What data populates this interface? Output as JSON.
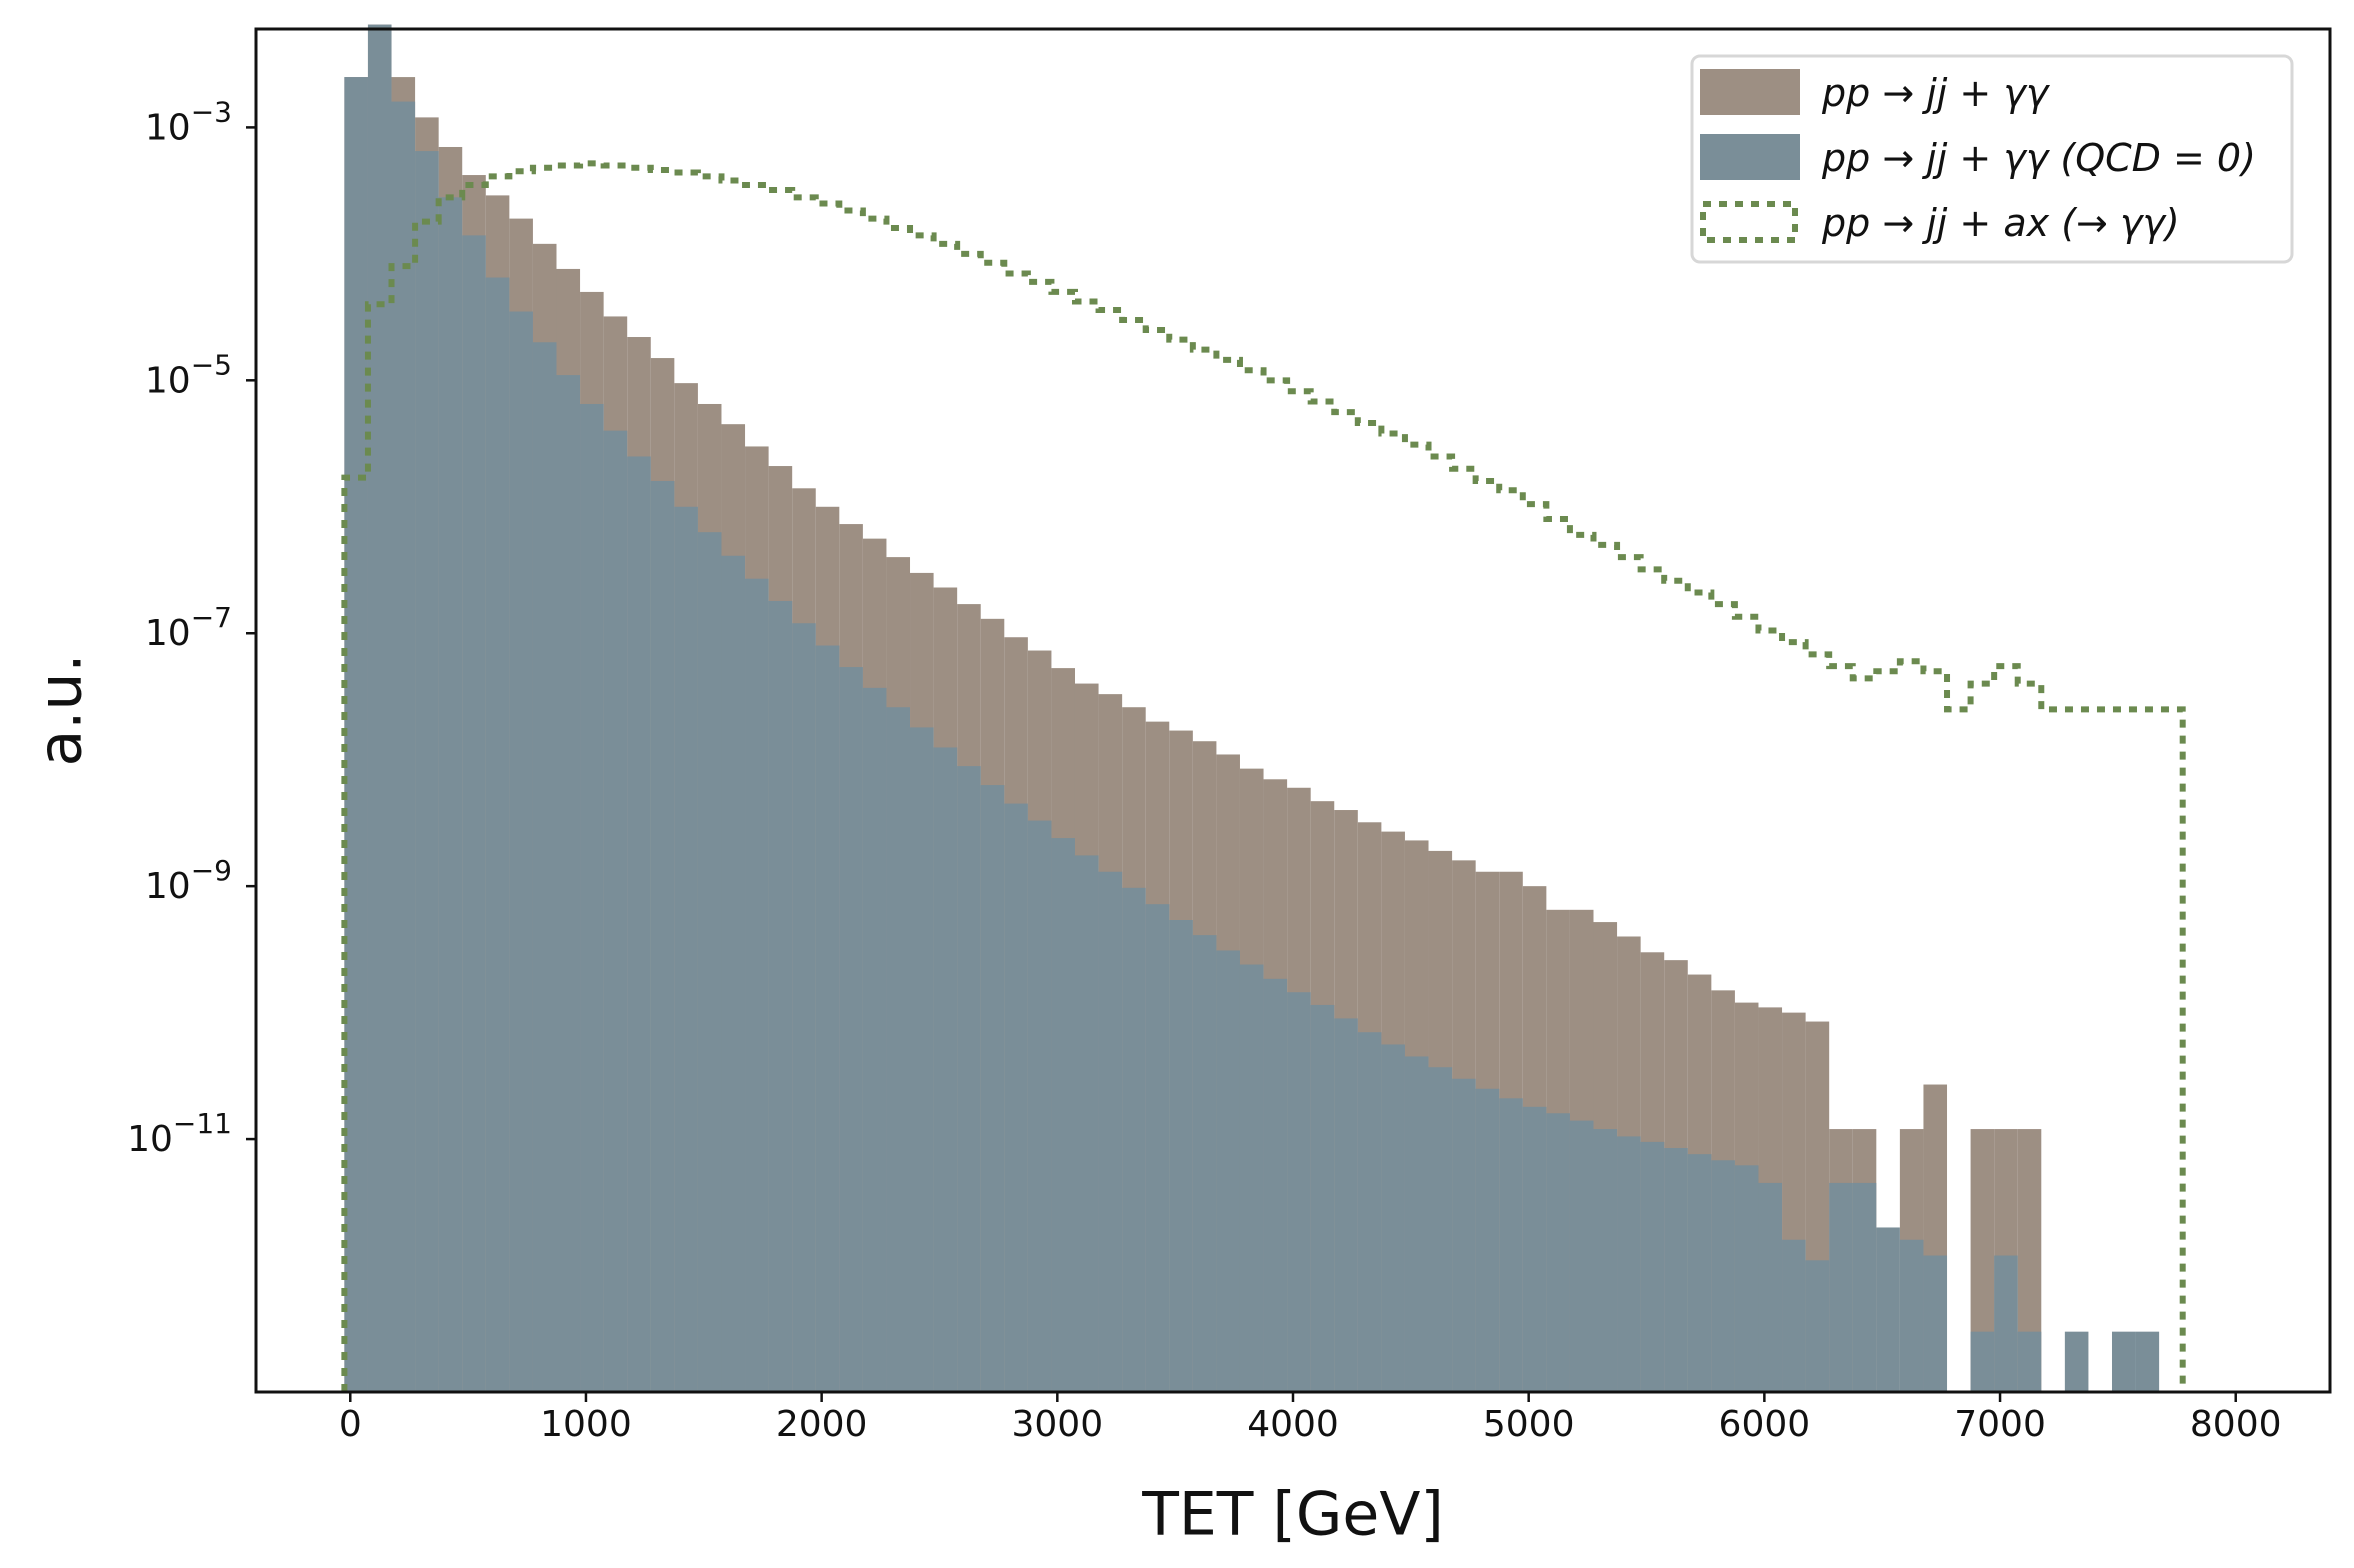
{
  "chart_data": {
    "type": "bar",
    "title": "",
    "xlabel": "TET [GeV]",
    "ylabel": "a.u.",
    "xlim": [
      -400,
      8400
    ],
    "ylim": [
      1e-13,
      0.006
    ],
    "y_scale": "log",
    "grid": false,
    "legend_placement": "top-right",
    "x_ticks": [
      0,
      1000,
      2000,
      3000,
      4000,
      5000,
      6000,
      7000,
      8000
    ],
    "x_tick_labels": [
      "0",
      "1000",
      "2000",
      "3000",
      "4000",
      "5000",
      "6000",
      "7000",
      "8000"
    ],
    "y_ticks": [
      1e-11,
      1e-09,
      1e-07,
      1e-05,
      0.001
    ],
    "y_tick_labels": [
      "10−11",
      "10−9",
      "10−7",
      "10−5",
      "10−3"
    ],
    "series": [
      {
        "name": "pp → jj + γγ",
        "kind": "histogram",
        "color": "#9d8f83",
        "bin_width": 100,
        "x_bin_starts": [
          -25,
          75,
          175,
          275,
          375,
          475,
          575,
          675,
          775,
          875,
          975,
          1075,
          1175,
          1275,
          1375,
          1475,
          1575,
          1675,
          1775,
          1875,
          1975,
          2075,
          2175,
          2275,
          2375,
          2475,
          2575,
          2675,
          2775,
          2875,
          2975,
          3075,
          3175,
          3275,
          3375,
          3475,
          3575,
          3675,
          3775,
          3875,
          3975,
          4075,
          4175,
          4275,
          4375,
          4475,
          4575,
          4675,
          4775,
          4875,
          4975,
          5075,
          5175,
          5275,
          5375,
          5475,
          5575,
          5675,
          5775,
          5875,
          5975,
          6075,
          6175,
          6275,
          6375,
          6475,
          6575,
          6675,
          6775,
          6875,
          6975,
          7075,
          7175,
          7275,
          7375,
          7475,
          7575,
          7675
        ],
        "values": [
          0.0025,
          0.0065,
          0.0025,
          0.0012,
          0.0007,
          0.00042,
          0.00029,
          0.00019,
          0.00012,
          7.6e-05,
          5e-05,
          3.2e-05,
          2.2e-05,
          1.5e-05,
          9.5e-06,
          6.5e-06,
          4.5e-06,
          3e-06,
          2.1e-06,
          1.4e-06,
          1e-06,
          7.3e-07,
          5.6e-07,
          4e-07,
          3e-07,
          2.3e-07,
          1.7e-07,
          1.3e-07,
          9.3e-08,
          7.3e-08,
          5.3e-08,
          4e-08,
          3.3e-08,
          2.6e-08,
          2e-08,
          1.7e-08,
          1.4e-08,
          1.1e-08,
          8.5e-09,
          7e-09,
          6e-09,
          4.7e-09,
          4e-09,
          3.2e-09,
          2.7e-09,
          2.3e-09,
          1.9e-09,
          1.6e-09,
          1.3e-09,
          1.3e-09,
          1e-09,
          6.5e-10,
          6.5e-10,
          5.2e-10,
          4e-10,
          3e-10,
          2.6e-10,
          2e-10,
          1.5e-10,
          1.2e-10,
          1.1e-10,
          1e-10,
          8.5e-11,
          1.2e-11,
          1.2e-11,
          0,
          1.2e-11,
          2.7e-11,
          0,
          1.2e-11,
          1.2e-11,
          1.2e-11,
          0,
          0,
          0,
          0,
          0,
          0
        ]
      },
      {
        "name": "pp → jj + γγ (QCD = 0)",
        "kind": "histogram",
        "color": "#7a8e98",
        "bin_width": 100,
        "x_bin_starts": [
          -25,
          75,
          175,
          275,
          375,
          475,
          575,
          675,
          775,
          875,
          975,
          1075,
          1175,
          1275,
          1375,
          1475,
          1575,
          1675,
          1775,
          1875,
          1975,
          2075,
          2175,
          2275,
          2375,
          2475,
          2575,
          2675,
          2775,
          2875,
          2975,
          3075,
          3175,
          3275,
          3375,
          3475,
          3575,
          3675,
          3775,
          3875,
          3975,
          4075,
          4175,
          4275,
          4375,
          4475,
          4575,
          4675,
          4775,
          4875,
          4975,
          5075,
          5175,
          5275,
          5375,
          5475,
          5575,
          5675,
          5775,
          5875,
          5975,
          6075,
          6175,
          6275,
          6375,
          6475,
          6575,
          6675,
          6775,
          6875,
          6975,
          7075,
          7175,
          7275,
          7375,
          7475,
          7575,
          7675
        ],
        "values": [
          0.0025,
          0.0065,
          0.0016,
          0.00065,
          0.00028,
          0.00014,
          6.5e-05,
          3.5e-05,
          2e-05,
          1.1e-05,
          6.5e-06,
          4e-06,
          2.5e-06,
          1.6e-06,
          1e-06,
          6.3e-07,
          4.1e-07,
          2.7e-07,
          1.8e-07,
          1.2e-07,
          8e-08,
          5.4e-08,
          3.7e-08,
          2.6e-08,
          1.8e-08,
          1.25e-08,
          8.9e-09,
          6.3e-09,
          4.5e-09,
          3.3e-09,
          2.4e-09,
          1.75e-09,
          1.3e-09,
          9.7e-10,
          7.2e-10,
          5.4e-10,
          4.1e-10,
          3.1e-10,
          2.4e-10,
          1.85e-10,
          1.45e-10,
          1.15e-10,
          9e-11,
          7e-11,
          5.6e-11,
          4.5e-11,
          3.7e-11,
          3e-11,
          2.5e-11,
          2.1e-11,
          1.8e-11,
          1.6e-11,
          1.4e-11,
          1.2e-11,
          1.05e-11,
          9.5e-12,
          8.5e-12,
          7.6e-12,
          6.8e-12,
          6.2e-12,
          4.5e-12,
          1.6e-12,
          1.1e-12,
          4.5e-12,
          4.5e-12,
          2e-12,
          1.6e-12,
          1.2e-12,
          1e-13,
          3e-13,
          1.2e-12,
          3e-13,
          0,
          3e-13,
          0,
          3e-13,
          3e-13,
          0
        ]
      },
      {
        "name": "pp → jj + ax (→ γγ)",
        "kind": "step",
        "color": "#6b8a4f",
        "dash": "8,8",
        "points": [
          [
            -25,
            1e-13
          ],
          [
            -25,
            1.7e-06
          ],
          [
            75,
            1.7e-06
          ],
          [
            75,
            4e-05
          ],
          [
            175,
            4e-05
          ],
          [
            175,
            8e-05
          ],
          [
            275,
            8e-05
          ],
          [
            275,
            0.00018
          ],
          [
            375,
            0.00018
          ],
          [
            375,
            0.00028
          ],
          [
            475,
            0.00028
          ],
          [
            475,
            0.00035
          ],
          [
            575,
            0.00035
          ],
          [
            575,
            0.00041
          ],
          [
            675,
            0.00041
          ],
          [
            675,
            0.00045
          ],
          [
            775,
            0.00045
          ],
          [
            775,
            0.00048
          ],
          [
            875,
            0.00048
          ],
          [
            875,
            0.0005
          ],
          [
            975,
            0.0005
          ],
          [
            975,
            0.00052
          ],
          [
            1075,
            0.00052
          ],
          [
            1075,
            0.0005
          ],
          [
            1175,
            0.0005
          ],
          [
            1175,
            0.00048
          ],
          [
            1275,
            0.00048
          ],
          [
            1275,
            0.00046
          ],
          [
            1375,
            0.00046
          ],
          [
            1375,
            0.00044
          ],
          [
            1475,
            0.00044
          ],
          [
            1475,
            0.00041
          ],
          [
            1575,
            0.00041
          ],
          [
            1575,
            0.00038
          ],
          [
            1675,
            0.00038
          ],
          [
            1675,
            0.00035
          ],
          [
            1775,
            0.00035
          ],
          [
            1775,
            0.00032
          ],
          [
            1875,
            0.00032
          ],
          [
            1875,
            0.00028
          ],
          [
            1975,
            0.00028
          ],
          [
            1975,
            0.00025
          ],
          [
            2075,
            0.00025
          ],
          [
            2075,
            0.00022
          ],
          [
            2175,
            0.00022
          ],
          [
            2175,
            0.00019
          ],
          [
            2275,
            0.00019
          ],
          [
            2275,
            0.00016
          ],
          [
            2375,
            0.00016
          ],
          [
            2375,
            0.00014
          ],
          [
            2475,
            0.00014
          ],
          [
            2475,
            0.00012
          ],
          [
            2575,
            0.00012
          ],
          [
            2575,
            0.0001
          ],
          [
            2675,
            0.0001
          ],
          [
            2675,
            8.5e-05
          ],
          [
            2775,
            8.5e-05
          ],
          [
            2775,
            7e-05
          ],
          [
            2875,
            7e-05
          ],
          [
            2875,
            6e-05
          ],
          [
            2975,
            6e-05
          ],
          [
            2975,
            5e-05
          ],
          [
            3075,
            5e-05
          ],
          [
            3075,
            4.2e-05
          ],
          [
            3175,
            4.2e-05
          ],
          [
            3175,
            3.6e-05
          ],
          [
            3275,
            3.6e-05
          ],
          [
            3275,
            3e-05
          ],
          [
            3375,
            3e-05
          ],
          [
            3375,
            2.5e-05
          ],
          [
            3475,
            2.5e-05
          ],
          [
            3475,
            2.1e-05
          ],
          [
            3575,
            2.1e-05
          ],
          [
            3575,
            1.75e-05
          ],
          [
            3675,
            1.75e-05
          ],
          [
            3675,
            1.45e-05
          ],
          [
            3775,
            1.45e-05
          ],
          [
            3775,
            1.2e-05
          ],
          [
            3875,
            1.2e-05
          ],
          [
            3875,
            1e-05
          ],
          [
            3975,
            1e-05
          ],
          [
            3975,
            8.2e-06
          ],
          [
            4075,
            8.2e-06
          ],
          [
            4075,
            6.8e-06
          ],
          [
            4175,
            6.8e-06
          ],
          [
            4175,
            5.6e-06
          ],
          [
            4275,
            5.6e-06
          ],
          [
            4275,
            4.6e-06
          ],
          [
            4375,
            4.6e-06
          ],
          [
            4375,
            3.8e-06
          ],
          [
            4475,
            3.8e-06
          ],
          [
            4475,
            3.1e-06
          ],
          [
            4575,
            3.1e-06
          ],
          [
            4575,
            2.5e-06
          ],
          [
            4675,
            2.5e-06
          ],
          [
            4675,
            2e-06
          ],
          [
            4775,
            2e-06
          ],
          [
            4775,
            1.6e-06
          ],
          [
            4875,
            1.6e-06
          ],
          [
            4875,
            1.35e-06
          ],
          [
            4975,
            1.35e-06
          ],
          [
            4975,
            1.05e-06
          ],
          [
            5075,
            1.05e-06
          ],
          [
            5075,
            8e-07
          ],
          [
            5175,
            8e-07
          ],
          [
            5175,
            6e-07
          ],
          [
            5275,
            6e-07
          ],
          [
            5275,
            5e-07
          ],
          [
            5375,
            5e-07
          ],
          [
            5375,
            4e-07
          ],
          [
            5475,
            4e-07
          ],
          [
            5475,
            3.2e-07
          ],
          [
            5575,
            3.2e-07
          ],
          [
            5575,
            2.6e-07
          ],
          [
            5675,
            2.6e-07
          ],
          [
            5675,
            2.1e-07
          ],
          [
            5775,
            2.1e-07
          ],
          [
            5775,
            1.7e-07
          ],
          [
            5875,
            1.7e-07
          ],
          [
            5875,
            1.35e-07
          ],
          [
            5975,
            1.35e-07
          ],
          [
            5975,
            1.05e-07
          ],
          [
            6075,
            1.05e-07
          ],
          [
            6075,
            8.5e-08
          ],
          [
            6175,
            8.5e-08
          ],
          [
            6175,
            6.8e-08
          ],
          [
            6275,
            6.8e-08
          ],
          [
            6275,
            5.5e-08
          ],
          [
            6375,
            5.5e-08
          ],
          [
            6375,
            4.4e-08
          ],
          [
            6475,
            4.4e-08
          ],
          [
            6475,
            5e-08
          ],
          [
            6575,
            5e-08
          ],
          [
            6575,
            6e-08
          ],
          [
            6675,
            6e-08
          ],
          [
            6675,
            5e-08
          ],
          [
            6775,
            5e-08
          ],
          [
            6775,
            2.5e-08
          ],
          [
            6875,
            2.5e-08
          ],
          [
            6875,
            4e-08
          ],
          [
            6975,
            4e-08
          ],
          [
            6975,
            5.5e-08
          ],
          [
            7075,
            5.5e-08
          ],
          [
            7075,
            4e-08
          ],
          [
            7175,
            4e-08
          ],
          [
            7175,
            2.5e-08
          ],
          [
            7375,
            2.5e-08
          ],
          [
            7375,
            2.5e-08
          ],
          [
            7575,
            2.5e-08
          ],
          [
            7575,
            2.5e-08
          ],
          [
            7775,
            2.5e-08
          ],
          [
            7775,
            1e-13
          ]
        ]
      }
    ]
  }
}
